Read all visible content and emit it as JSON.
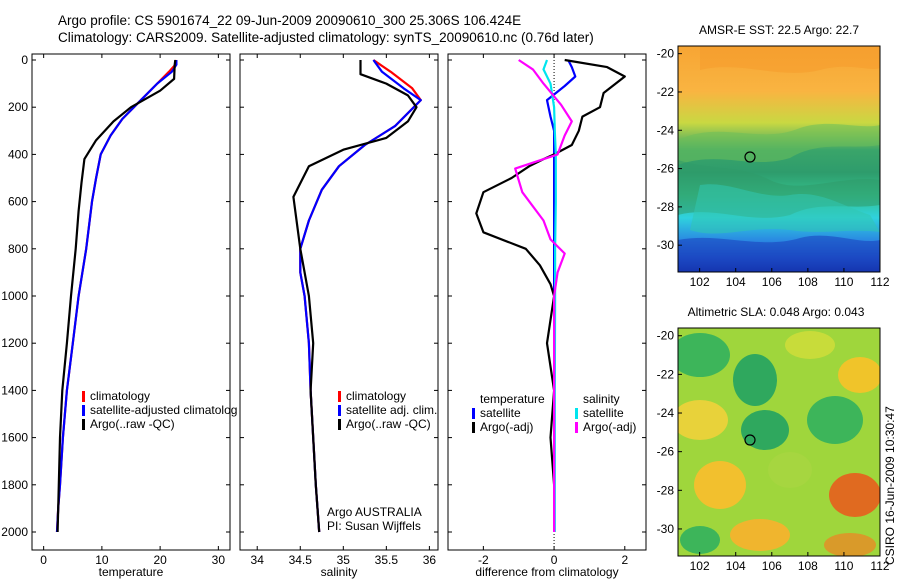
{
  "header": {
    "title_line1": "Argo profile: CS 5901674_22 09-Jun-2009 20090610_300 25.306S 106.424E",
    "title_line2": "Climatology: CARS2009. Satellite-adjusted climatology: synTS_20090610.nc (0.76d later)"
  },
  "side_label": "CSIRO 16-Jun-2009 10:30:47",
  "colors": {
    "climatology": "#ff0000",
    "satellite": "#0000ff",
    "argo": "#000000",
    "cyan": "#00e5ee",
    "magenta": "#ff00ff"
  },
  "chart_data": [
    {
      "id": "temperature",
      "type": "line",
      "xlabel": "temperature",
      "ylabel": "",
      "xlim": [
        -2,
        32
      ],
      "ylim": [
        2000,
        0
      ],
      "xticks": [
        0,
        10,
        20,
        30
      ],
      "yticks": [
        0,
        200,
        400,
        600,
        800,
        1000,
        1200,
        1400,
        1600,
        1800,
        2000
      ],
      "legend": [
        "climatology",
        "satellite-adjusted climatolog",
        "Argo(..raw -QC)"
      ],
      "series": [
        {
          "name": "climatology",
          "color": "#ff0000",
          "x": [
            22.8,
            22.6,
            21.5,
            19.5,
            15.5,
            13.5,
            11.5,
            9.8,
            9.0,
            8.3,
            7.8,
            7.3,
            6.0,
            5.0,
            4.0,
            3.3,
            2.8,
            2.5,
            2.3
          ],
          "y": [
            0,
            20,
            50,
            100,
            200,
            250,
            320,
            400,
            500,
            600,
            700,
            800,
            1000,
            1200,
            1400,
            1600,
            1800,
            1900,
            2000
          ]
        },
        {
          "name": "satellite-adjusted climatolog",
          "color": "#0000ff",
          "x": [
            22.8,
            22.8,
            22.0,
            19.5,
            15.5,
            13.5,
            11.5,
            9.8,
            9.0,
            8.3,
            7.8,
            7.3,
            6.0,
            5.0,
            4.0,
            3.3,
            2.8,
            2.5,
            2.3
          ],
          "y": [
            0,
            20,
            50,
            100,
            200,
            250,
            320,
            400,
            500,
            600,
            700,
            800,
            1000,
            1200,
            1400,
            1600,
            1800,
            1900,
            2000
          ]
        },
        {
          "name": "Argo(..raw -QC)",
          "color": "#000000",
          "x": [
            22.6,
            22.5,
            22.4,
            20.0,
            15.0,
            12.0,
            9.0,
            7.0,
            6.5,
            6.0,
            5.5,
            4.7,
            4.0,
            3.2,
            2.8,
            2.6,
            2.5,
            2.4
          ],
          "y": [
            0,
            20,
            80,
            130,
            200,
            260,
            340,
            420,
            520,
            640,
            800,
            1000,
            1200,
            1400,
            1600,
            1800,
            1900,
            2000
          ]
        }
      ]
    },
    {
      "id": "salinity",
      "type": "line",
      "xlabel": "salinity",
      "ylabel": "",
      "xlim": [
        33.8,
        36.1
      ],
      "ylim": [
        2000,
        0
      ],
      "xticks": [
        34,
        34.5,
        35,
        35.5,
        36
      ],
      "xticklabels": [
        "34",
        "34.5",
        "35",
        "35.5",
        "36"
      ],
      "legend": [
        "climatology",
        "satellite adj. clim.",
        "Argo(..raw -QC)"
      ],
      "annotations": [
        "Argo AUSTRALIA",
        "PI: Susan Wijffels"
      ],
      "series": [
        {
          "name": "climatology",
          "color": "#ff0000",
          "x": [
            35.35,
            35.55,
            35.8,
            35.9,
            35.6,
            35.25,
            34.95,
            34.75,
            34.6,
            34.5,
            34.5,
            34.55,
            34.6,
            34.62,
            34.65,
            34.68,
            34.7,
            34.72
          ],
          "y": [
            0,
            50,
            120,
            170,
            280,
            360,
            450,
            550,
            680,
            800,
            900,
            1000,
            1200,
            1400,
            1600,
            1800,
            1900,
            2000
          ]
        },
        {
          "name": "satellite adj. clim.",
          "color": "#0000ff",
          "x": [
            35.35,
            35.45,
            35.7,
            35.9,
            35.6,
            35.25,
            34.95,
            34.75,
            34.6,
            34.5,
            34.5,
            34.55,
            34.6,
            34.62,
            34.65,
            34.68,
            34.7,
            34.72
          ],
          "y": [
            0,
            50,
            120,
            170,
            280,
            360,
            450,
            550,
            680,
            800,
            900,
            1000,
            1200,
            1400,
            1600,
            1800,
            1900,
            2000
          ]
        },
        {
          "name": "Argo(..raw -QC)",
          "color": "#000000",
          "x": [
            35.2,
            35.2,
            35.5,
            35.75,
            35.85,
            35.75,
            35.5,
            35.0,
            34.6,
            34.42,
            34.5,
            34.6,
            34.65,
            34.62,
            34.65,
            34.68,
            34.7,
            34.72
          ],
          "y": [
            0,
            60,
            100,
            150,
            200,
            260,
            330,
            380,
            450,
            580,
            800,
            1000,
            1200,
            1400,
            1600,
            1800,
            1900,
            2000
          ]
        }
      ]
    },
    {
      "id": "difference",
      "type": "line",
      "xlabel": "difference from climatology",
      "ylabel": "",
      "xlim": [
        -3.0,
        2.6
      ],
      "ylim": [
        2000,
        0
      ],
      "xticks": [
        -2,
        0,
        2
      ],
      "legend_titles": [
        "temperature",
        "salinity"
      ],
      "legend": [
        "satellite",
        "Argo(-adj)",
        "satellite",
        "Argo(-adj)"
      ],
      "series": [
        {
          "name": "satellite",
          "group": "temperature",
          "color": "#0000ff",
          "x": [
            0.4,
            0.5,
            0.6,
            0.3,
            -0.2,
            -0.1,
            0.0,
            0.0,
            0.0,
            0.0,
            0.0,
            0.0,
            0.0
          ],
          "y": [
            0,
            30,
            70,
            110,
            170,
            240,
            300,
            400,
            600,
            800,
            1000,
            1500,
            2000
          ]
        },
        {
          "name": "Argo(-adj)",
          "group": "temperature",
          "color": "#000000",
          "x": [
            0.3,
            1.5,
            2.0,
            1.4,
            1.3,
            0.8,
            0.7,
            0.5,
            0.0,
            -0.3,
            -0.7,
            -1.2,
            -2.0,
            -2.2,
            -2.0,
            -0.8,
            -0.4,
            -0.1,
            0.0,
            -0.2,
            0.0,
            -0.1,
            0.0,
            0.0
          ],
          "y": [
            0,
            30,
            70,
            140,
            200,
            240,
            300,
            360,
            400,
            420,
            450,
            500,
            560,
            650,
            730,
            800,
            870,
            950,
            1000,
            1200,
            1400,
            1600,
            1800,
            2000
          ]
        },
        {
          "name": "satellite",
          "group": "salinity",
          "color": "#00e5ee",
          "x": [
            -0.2,
            -0.3,
            -0.1,
            0.0,
            0.02,
            0.05,
            0.05,
            0.03,
            0.03,
            0.02,
            0.02,
            0.02
          ],
          "y": [
            0,
            40,
            100,
            200,
            300,
            400,
            600,
            800,
            1000,
            1400,
            1800,
            2000
          ]
        },
        {
          "name": "Argo(-adj)",
          "group": "salinity",
          "color": "#ff00ff",
          "x": [
            -1.0,
            -0.6,
            -0.3,
            0.2,
            0.5,
            0.3,
            0.1,
            -1.1,
            -0.9,
            -0.3,
            -0.1,
            0.3,
            0.1,
            0.0,
            0.0,
            0.0,
            0.0
          ],
          "y": [
            0,
            40,
            100,
            190,
            260,
            320,
            400,
            460,
            560,
            680,
            760,
            820,
            900,
            1000,
            1300,
            1600,
            2000
          ]
        }
      ]
    }
  ],
  "maps": [
    {
      "id": "sst-map",
      "title": "AMSR-E SST: 22.5 Argo: 22.7",
      "xticks": [
        "102",
        "104",
        "106",
        "108",
        "110",
        "112"
      ],
      "yticks": [
        "-20",
        "-22",
        "-24",
        "-26",
        "-28",
        "-30"
      ],
      "float_lon": 106.424,
      "float_lat": -25.306
    },
    {
      "id": "sla-map",
      "title": "Altimetric SLA: 0.048 Argo: 0.043",
      "xticks": [
        "102",
        "104",
        "106",
        "108",
        "110",
        "112"
      ],
      "yticks": [
        "-20",
        "-22",
        "-24",
        "-26",
        "-28",
        "-30"
      ],
      "float_lon": 106.424,
      "float_lat": -25.306
    }
  ]
}
